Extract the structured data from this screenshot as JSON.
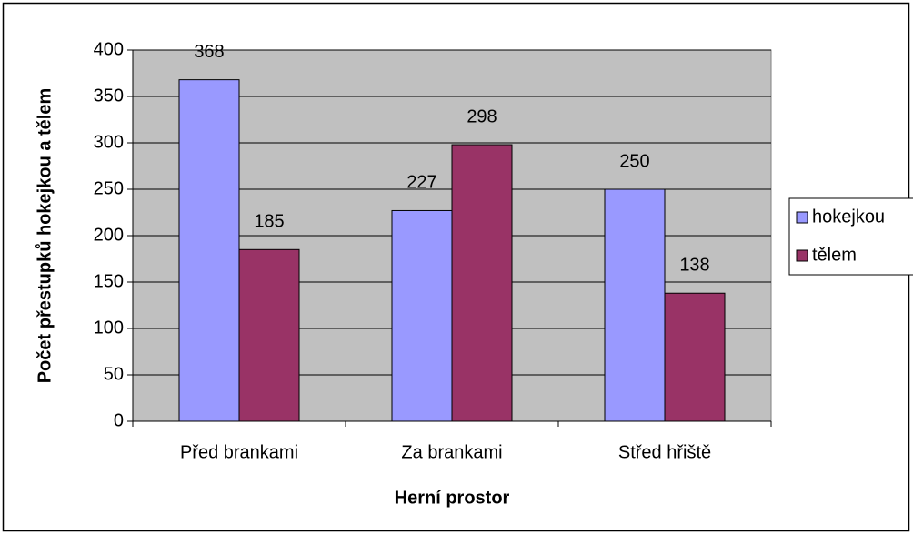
{
  "chart_data": {
    "type": "bar",
    "xlabel": "Herní prostor",
    "ylabel": "Počet přestupků hokejkou a tělem",
    "categories": [
      "Před brankami",
      "Za brankami",
      "Střed hřiště"
    ],
    "series": [
      {
        "name": "hokejkou",
        "color": "#9999ff",
        "values": [
          368,
          227,
          250
        ]
      },
      {
        "name": "tělem",
        "color": "#993366",
        "values": [
          185,
          298,
          138
        ]
      }
    ],
    "ylim": [
      0,
      400
    ],
    "yticks": [
      0,
      50,
      100,
      150,
      200,
      250,
      300,
      350,
      400
    ],
    "grid": true,
    "legend": "right",
    "plot_background": "#c0c0c0"
  }
}
